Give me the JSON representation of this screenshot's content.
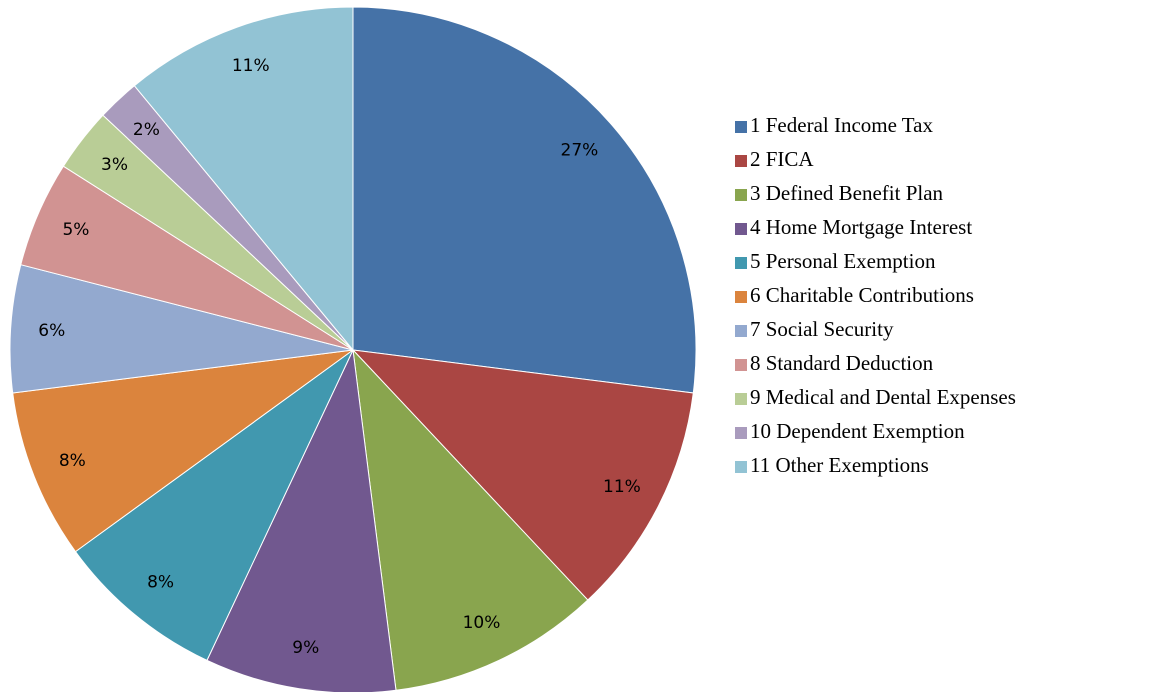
{
  "chart_data": {
    "type": "pie",
    "categories": [
      "1 Federal Income Tax",
      "2 FICA",
      "3 Defined Benefit Plan",
      "4 Home Mortgage Interest",
      "5 Personal Exemption",
      "6 Charitable Contributions",
      "7 Social Security",
      "8 Standard Deduction",
      "9 Medical and Dental Expenses",
      "10 Dependent Exemption",
      "11 Other Exemptions"
    ],
    "values": [
      27,
      11,
      10,
      9,
      8,
      8,
      6,
      5,
      3,
      2,
      11
    ],
    "value_labels": [
      "27%",
      "11%",
      "10%",
      "9%",
      "8%",
      "8%",
      "6%",
      "5%",
      "3%",
      "2%",
      "11%"
    ],
    "colors": [
      "#4572a7",
      "#aa4643",
      "#89a54e",
      "#71588f",
      "#4198af",
      "#db843d",
      "#93a9cf",
      "#d19392",
      "#b9cd96",
      "#a99bbd",
      "#92c3d4"
    ],
    "legend": "right"
  }
}
